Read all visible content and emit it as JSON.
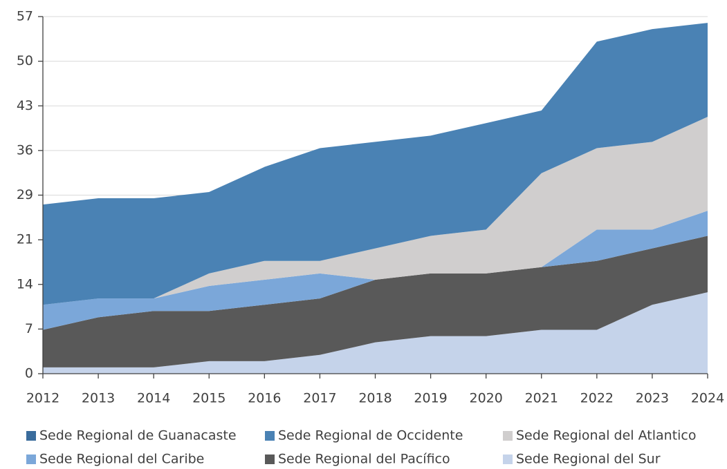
{
  "chart_data": {
    "type": "stacked_area",
    "categories": [
      "2012",
      "2013",
      "2014",
      "2015",
      "2016",
      "2017",
      "2018",
      "2019",
      "2020",
      "2021",
      "2022",
      "2023",
      "2024"
    ],
    "series": [
      {
        "name": "Sede Regional del Sur",
        "color": "#c5d3ea",
        "values": [
          1,
          1,
          1,
          2,
          2,
          3,
          5,
          6,
          6,
          7,
          7,
          11,
          13
        ]
      },
      {
        "name": "Sede Regional del Pacífico",
        "color": "#595959",
        "values": [
          6,
          8,
          9,
          8,
          9,
          9,
          10,
          10,
          10,
          10,
          11,
          9,
          9
        ]
      },
      {
        "name": "Sede Regional del Caribe",
        "color": "#7ba7d9",
        "values": [
          4,
          3,
          2,
          4,
          4,
          4,
          0,
          0,
          0,
          0,
          5,
          3,
          4
        ]
      },
      {
        "name": "Sede Regional del Atlantico",
        "color": "#d0cece",
        "values": [
          0,
          0,
          0,
          2,
          3,
          2,
          5,
          6,
          7,
          15,
          13,
          14,
          15
        ]
      },
      {
        "name": "Sede Regional de Occidente",
        "color": "#4a82b4",
        "values": [
          16,
          16,
          16,
          13,
          15,
          18,
          17,
          16,
          17,
          10,
          17,
          18,
          15
        ]
      },
      {
        "name": "Sede Regional de Guanacaste",
        "color": "#3a6c9c",
        "values": [
          0,
          0,
          0,
          0,
          0,
          0,
          0,
          0,
          0,
          0,
          0,
          0,
          0
        ]
      }
    ],
    "legend_order": [
      5,
      4,
      3,
      2,
      1,
      0
    ],
    "ylim": [
      0,
      57
    ],
    "yticks": [
      0,
      {
        "value": 7.125,
        "label": "7"
      },
      {
        "value": 14.25,
        "label": "14"
      },
      {
        "value": 21.375,
        "label": "21"
      },
      {
        "value": 28.5,
        "label": "29"
      },
      {
        "value": 35.625,
        "label": "36"
      },
      {
        "value": 42.75,
        "label": "43"
      },
      {
        "value": 49.875,
        "label": "50"
      },
      57
    ],
    "grid": true,
    "legend": "bottom"
  }
}
